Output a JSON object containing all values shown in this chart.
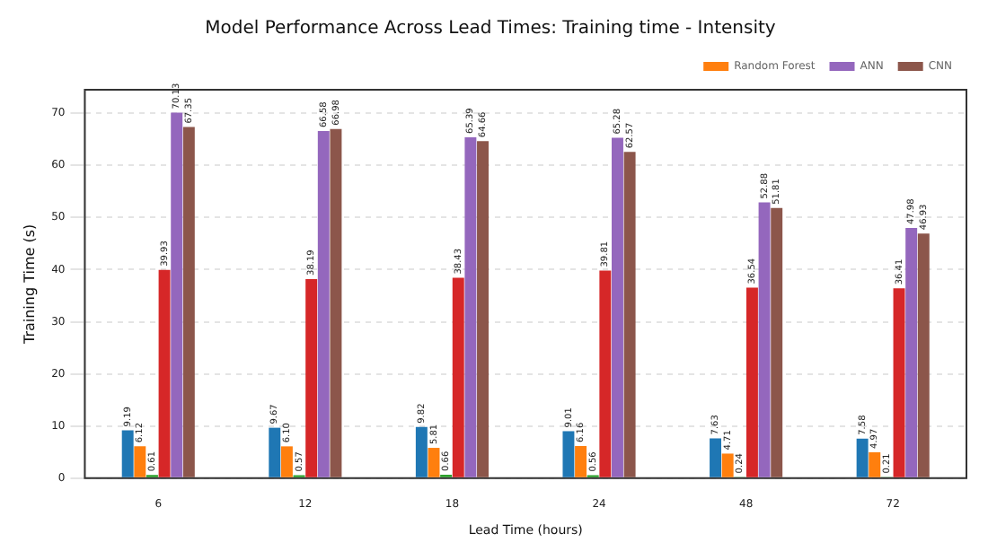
{
  "chart_data": {
    "type": "bar",
    "title": "Model Performance Across Lead Times: Training time - Intensity",
    "xlabel": "Lead Time (hours)",
    "ylabel": "Training Time (s)",
    "categories": [
      "6",
      "12",
      "18",
      "24",
      "48",
      "72"
    ],
    "series": [
      {
        "color": "#1f77b4",
        "values": [
          9.19,
          9.67,
          9.82,
          9.01,
          7.63,
          7.58
        ],
        "value_labels": [
          "9.19",
          "9.67",
          "9.82",
          "9.01",
          "7.63",
          "7.58"
        ]
      },
      {
        "name": "Random Forest",
        "color": "#ff7f0e",
        "values": [
          6.12,
          6.1,
          5.81,
          6.16,
          4.71,
          4.97
        ],
        "value_labels": [
          "6.12",
          "6.10",
          "5.81",
          "6.16",
          "4.71",
          "4.97"
        ]
      },
      {
        "color": "#2ca02c",
        "values": [
          0.61,
          0.57,
          0.66,
          0.56,
          0.24,
          0.21
        ],
        "value_labels": [
          "0.61",
          "0.57",
          "0.66",
          "0.56",
          "0.24",
          "0.21"
        ]
      },
      {
        "color": "#d62728",
        "values": [
          39.93,
          38.19,
          38.43,
          39.81,
          36.54,
          36.41
        ],
        "value_labels": [
          "39.93",
          "38.19",
          "38.43",
          "39.81",
          "36.54",
          "36.41"
        ]
      },
      {
        "name": "ANN",
        "color": "#9467bd",
        "values": [
          70.13,
          66.58,
          65.39,
          65.28,
          52.88,
          47.98
        ],
        "value_labels": [
          "70.13",
          "66.58",
          "65.39",
          "65.28",
          "52.88",
          "47.98"
        ]
      },
      {
        "name": "CNN",
        "color": "#8c564b",
        "values": [
          67.35,
          66.98,
          64.66,
          62.57,
          51.81,
          46.93
        ],
        "value_labels": [
          "67.35",
          "66.98",
          "64.66",
          "62.57",
          "51.81",
          "46.93"
        ]
      }
    ],
    "ylim": [
      0,
      74.5
    ],
    "yticks": [
      0,
      10,
      20,
      30,
      40,
      50,
      60,
      70
    ],
    "grid": "y",
    "legend": "top right"
  }
}
